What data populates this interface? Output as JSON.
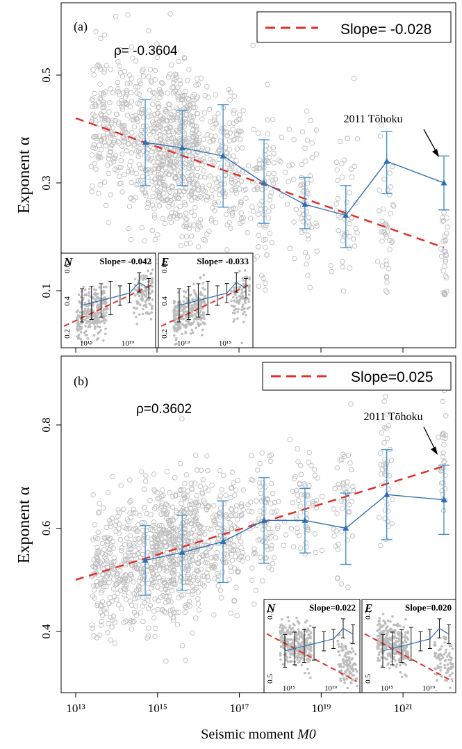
{
  "chart_data": [
    {
      "type": "scatter",
      "panel_label": "(a)",
      "ylabel": "Exponent α",
      "xlabel": "",
      "x_scale": "log10",
      "xlim": [
        10000000000000.0,
        1e+22
      ],
      "ylim": [
        0.02,
        0.62
      ],
      "yticks": [
        0.1,
        0.3,
        0.5
      ],
      "ytick_labels": [
        "0.1",
        "0.3",
        "0.5"
      ],
      "correlation_label": "ρ= -0.3604",
      "legend": {
        "placement": "top-right",
        "label": "Slope= -0.028"
      },
      "annotation": "2011 Tōhoku",
      "fit_line": {
        "x": [
          10000000000000.0,
          1e+22
        ],
        "y": [
          0.42,
          0.18
        ]
      },
      "binned_means": {
        "x": [
          500000000000000.0,
          4000000000000000.0,
          4e+16,
          4e+17,
          4e+18,
          4e+19,
          4e+20,
          1e+22
        ],
        "y": [
          0.375,
          0.365,
          0.35,
          0.3,
          0.26,
          0.24,
          0.34,
          0.3
        ],
        "err_low": [
          0.295,
          0.295,
          0.255,
          0.225,
          0.215,
          0.18,
          0.28,
          0.25
        ],
        "err_high": [
          0.455,
          0.435,
          0.445,
          0.38,
          0.31,
          0.295,
          0.395,
          0.35
        ]
      },
      "scatter_style": {
        "color": "#bdbdbd",
        "marker": "open-circle"
      },
      "insets": [
        {
          "component": "N",
          "slope_label": "Slope= -0.042",
          "yticks": [
            "0.2",
            "0.4",
            "0.6"
          ],
          "xticks": [
            "10¹⁵",
            "10¹⁹"
          ]
        },
        {
          "component": "E",
          "slope_label": "Slope= -0.033",
          "yticks": [
            "0.2",
            "0.4",
            "0.6"
          ],
          "xticks": [
            "10¹⁹",
            "10¹⁵"
          ]
        }
      ]
    },
    {
      "type": "scatter",
      "panel_label": "(b)",
      "ylabel": "Exponent α",
      "xlabel": "Seismic moment M0",
      "x_scale": "log10",
      "xlim": [
        10000000000000.0,
        1e+22
      ],
      "ylim": [
        0.33,
        0.92
      ],
      "yticks": [
        0.4,
        0.6,
        0.8
      ],
      "ytick_labels": [
        "0.4",
        "0.6",
        "0.8"
      ],
      "xticks": [
        10000000000000.0,
        1000000000000000.0,
        1e+17,
        1e+19,
        1e+21
      ],
      "xtick_labels": [
        "10¹³",
        "10¹⁵",
        "10¹⁷",
        "10¹⁹",
        "10²¹"
      ],
      "correlation_label": "ρ=0.3602",
      "legend": {
        "placement": "top-right",
        "label": "Slope=0.025"
      },
      "annotation": "2011 Tōhoku",
      "fit_line": {
        "x": [
          10000000000000.0,
          1e+22
        ],
        "y": [
          0.5,
          0.72
        ]
      },
      "binned_means": {
        "x": [
          500000000000000.0,
          4000000000000000.0,
          4e+16,
          4e+17,
          4e+18,
          4e+19,
          4e+20,
          1e+22
        ],
        "y": [
          0.538,
          0.553,
          0.574,
          0.615,
          0.615,
          0.6,
          0.665,
          0.655
        ],
        "err_low": [
          0.47,
          0.48,
          0.495,
          0.532,
          0.552,
          0.53,
          0.578,
          0.588
        ],
        "err_high": [
          0.605,
          0.625,
          0.653,
          0.698,
          0.677,
          0.668,
          0.752,
          0.722
        ]
      },
      "scatter_style": {
        "color": "#bdbdbd",
        "marker": "open-circle"
      },
      "insets": [
        {
          "component": "N",
          "slope_label": "Slope=0.022",
          "yticks": [
            "0.5",
            "0.7"
          ],
          "xticks": [
            "10¹⁵",
            "10¹⁹"
          ]
        },
        {
          "component": "E",
          "slope_label": "Slope=0.020",
          "yticks": [
            "0.5",
            "0.7"
          ],
          "xticks": [
            "10¹⁵",
            "10¹⁹"
          ]
        }
      ]
    }
  ],
  "colors": {
    "scatter": "#bdbdbd",
    "mean_line": "#2f6fb5",
    "fit_line": "#e0302a",
    "errorbar": "#3a8cc9",
    "inset_errorbar": "#111111"
  }
}
